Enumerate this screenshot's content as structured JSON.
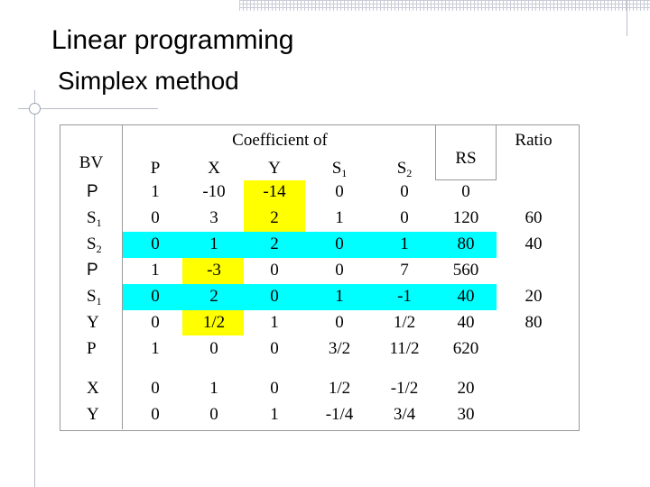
{
  "slide": {
    "title": "Linear programming",
    "subtitle": "Simplex method"
  },
  "table": {
    "header_coeff": "Coefficient of",
    "header_ratio": "Ratio",
    "header_bv": "BV",
    "header_rs": "RS",
    "columns": [
      "P",
      "X",
      "Y",
      "S1",
      "S2"
    ],
    "tableaus": [
      {
        "rows": [
          {
            "bv": "P",
            "values": [
              "1",
              "-10",
              "-14",
              "0",
              "0"
            ],
            "rs": "0",
            "ratio": ""
          },
          {
            "bv": "S1",
            "values": [
              "0",
              "3",
              "2",
              "1",
              "0"
            ],
            "rs": "120",
            "ratio": "60"
          },
          {
            "bv": "S2",
            "values": [
              "0",
              "1",
              "2",
              "0",
              "1"
            ],
            "rs": "80",
            "ratio": "40"
          }
        ]
      },
      {
        "rows": [
          {
            "bv": "P",
            "values": [
              "1",
              "-3",
              "0",
              "0",
              "7"
            ],
            "rs": "560",
            "ratio": ""
          },
          {
            "bv": "S1",
            "values": [
              "0",
              "2",
              "0",
              "1",
              "-1"
            ],
            "rs": "40",
            "ratio": "20"
          },
          {
            "bv": "Y",
            "values": [
              "0",
              "1/2",
              "1",
              "0",
              "1/2"
            ],
            "rs": "40",
            "ratio": "80"
          }
        ]
      },
      {
        "rows": [
          {
            "bv": "P",
            "values": [
              "1",
              "0",
              "0",
              "3/2",
              "11/2"
            ],
            "rs": "620",
            "ratio": ""
          },
          {
            "bv": "X",
            "values": [
              "0",
              "1",
              "0",
              "1/2",
              "-1/2"
            ],
            "rs": "20",
            "ratio": ""
          },
          {
            "bv": "Y",
            "values": [
              "0",
              "0",
              "1",
              "-1/4",
              "3/4"
            ],
            "rs": "30",
            "ratio": ""
          }
        ]
      }
    ],
    "highlight_colors": {
      "pivot_column": "#ffff00",
      "pivot_row": "#00ffff"
    }
  }
}
